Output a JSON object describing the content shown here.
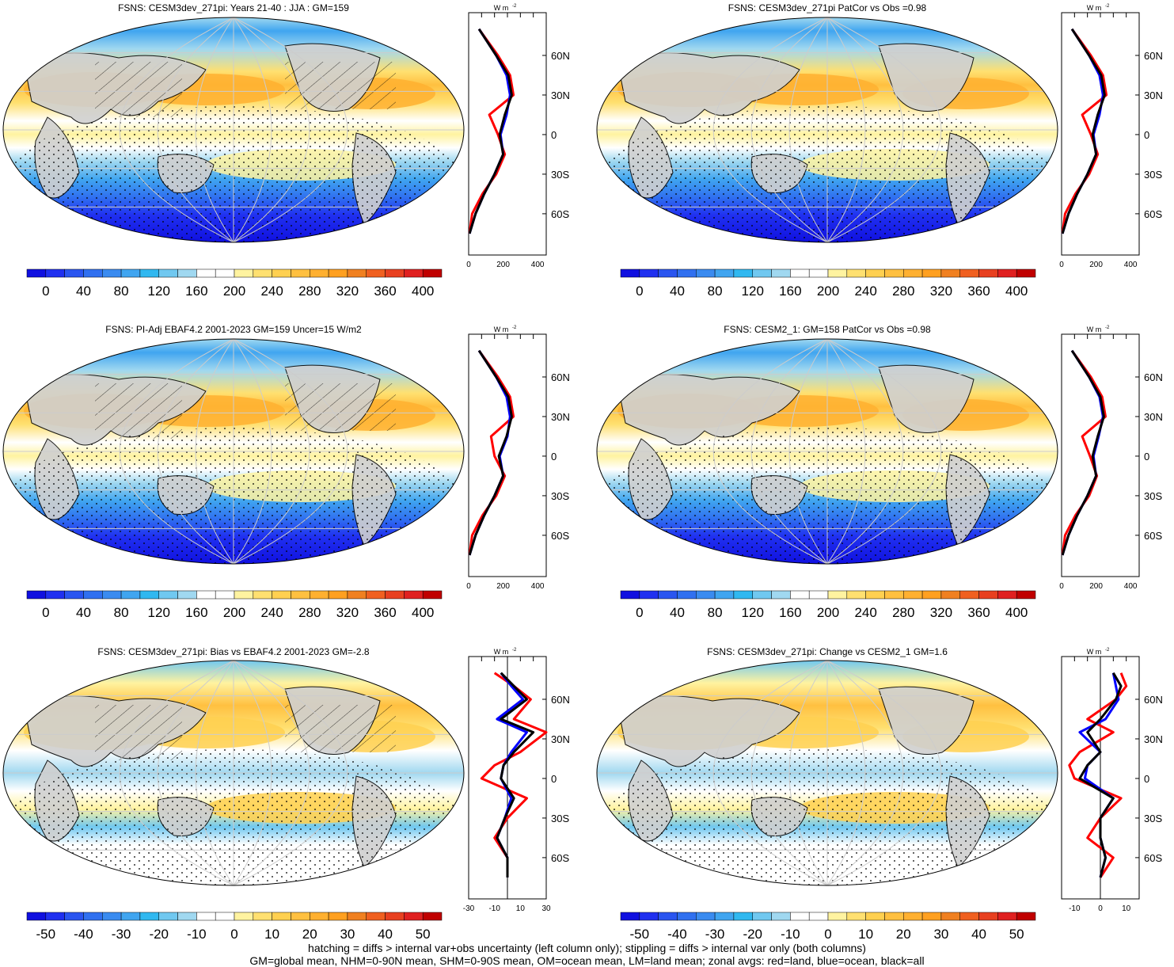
{
  "colors": {
    "land_gray": "#d0d0d0",
    "grid": "#cccccc",
    "zonal_land": "#ff0000",
    "zonal_ocean": "#0000ff",
    "zonal_all": "#000000"
  },
  "abs_palette": [
    "#1010e0",
    "#2030f0",
    "#2a55f0",
    "#3070f0",
    "#3a8bf0",
    "#40a5f0",
    "#30b8f0",
    "#70c8f0",
    "#a0d8f0",
    "#ffffff",
    "#ffffff",
    "#fff3a0",
    "#ffe070",
    "#ffd050",
    "#ffc040",
    "#ffb030",
    "#ffa020",
    "#f08020",
    "#f06020",
    "#e84020",
    "#e02020",
    "#c00000"
  ],
  "diff_palette": [
    "#1010e0",
    "#2030f0",
    "#2a55f0",
    "#3070f0",
    "#3a8bf0",
    "#40a5f0",
    "#30b8f0",
    "#70c8f0",
    "#a0d8f0",
    "#ffffff",
    "#ffffff",
    "#fff3a0",
    "#ffe070",
    "#ffd050",
    "#ffc040",
    "#ffb030",
    "#ffa020",
    "#f08020",
    "#f06020",
    "#e84020",
    "#e02020",
    "#c00000"
  ],
  "abs_ticks": [
    "0",
    "40",
    "80",
    "120",
    "160",
    "200",
    "240",
    "280",
    "320",
    "360",
    "400"
  ],
  "diff_ticks": [
    "-50",
    "-40",
    "-30",
    "-20",
    "-10",
    "0",
    "10",
    "20",
    "30",
    "40",
    "50"
  ],
  "lat_labels": [
    "60N",
    "30N",
    "0",
    "30S",
    "60S"
  ],
  "zonal_unit": "W m",
  "zonal_unit_exp": "-2",
  "panels": [
    {
      "title": "FSNS: CESM3dev_271pi: Years 21-40 : JJA : GM=159",
      "kind": "abs",
      "hatch": true,
      "zonal_ticks": [
        "0",
        "200",
        "400"
      ],
      "zonal_range": [
        0,
        450
      ],
      "zero_line": false
    },
    {
      "title": "FSNS: CESM3dev_271pi PatCor vs Obs =0.98",
      "kind": "abs",
      "hatch": false,
      "zonal_ticks": [
        "0",
        "200",
        "400"
      ],
      "zonal_range": [
        0,
        450
      ],
      "zero_line": false
    },
    {
      "title": "FSNS: PI-Adj EBAF4.2 2001-2023 GM=159 Uncer=15 W/m2",
      "kind": "abs",
      "hatch": true,
      "zonal_ticks": [
        "0",
        "200",
        "400"
      ],
      "zonal_range": [
        0,
        450
      ],
      "zero_line": false
    },
    {
      "title": "FSNS: CESM2_1: GM=158 PatCor vs Obs =0.98",
      "kind": "abs",
      "hatch": false,
      "zonal_ticks": [
        "0",
        "200",
        "400"
      ],
      "zonal_range": [
        0,
        450
      ],
      "zero_line": false
    },
    {
      "title": "FSNS: CESM3dev_271pi: Bias vs EBAF4.2 2001-2023 GM=-2.8",
      "kind": "diff",
      "hatch": true,
      "zonal_ticks": [
        "-30",
        "-10",
        "10",
        "30"
      ],
      "zonal_range": [
        -30,
        30
      ],
      "zero_line": true
    },
    {
      "title": "FSNS: CESM3dev_271pi: Change vs CESM2_1 GM=1.6",
      "kind": "diff",
      "hatch": false,
      "zonal_ticks": [
        "-10",
        "0",
        "10"
      ],
      "zonal_range": [
        -15,
        15
      ],
      "zero_line": true
    }
  ],
  "footer": {
    "line1": "hatching = diffs > internal var+obs uncertainty (left column only); stippling = diffs > internal var only (both columns)",
    "line2": "GM=global mean, NHM=0-90N mean, SHM=0-90S mean, OM=ocean mean, LM=land mean; zonal avgs: red=land, blue=ocean, black=all"
  },
  "chart_data": [
    {
      "type": "heatmap",
      "title": "FSNS: CESM3dev_271pi: Years 21-40 : JJA : GM=159",
      "colorbar_ticks": [
        0,
        40,
        80,
        120,
        160,
        200,
        240,
        280,
        320,
        360,
        400
      ],
      "zonal_mean": {
        "lat": [
          80,
          60,
          45,
          30,
          15,
          0,
          -15,
          -30,
          -45,
          -60,
          -75
        ],
        "all": [
          60,
          160,
          230,
          250,
          210,
          180,
          200,
          150,
          90,
          40,
          5
        ],
        "land": [
          60,
          170,
          240,
          260,
          120,
          170,
          210,
          160,
          80,
          20,
          5
        ],
        "ocean": [
          60,
          160,
          220,
          240,
          220,
          185,
          200,
          150,
          90,
          40,
          5
        ]
      }
    },
    {
      "type": "heatmap",
      "title": "FSNS: CESM3dev_271pi PatCor vs Obs =0.98",
      "colorbar_ticks": [
        0,
        40,
        80,
        120,
        160,
        200,
        240,
        280,
        320,
        360,
        400
      ],
      "zonal_mean": {
        "lat": [
          80,
          60,
          45,
          30,
          15,
          0,
          -15,
          -30,
          -45,
          -60,
          -75
        ],
        "all": [
          60,
          160,
          230,
          250,
          210,
          180,
          200,
          150,
          90,
          40,
          5
        ],
        "land": [
          60,
          170,
          240,
          260,
          120,
          170,
          210,
          160,
          80,
          20,
          5
        ],
        "ocean": [
          60,
          160,
          220,
          240,
          220,
          185,
          200,
          150,
          90,
          40,
          5
        ]
      }
    },
    {
      "type": "heatmap",
      "title": "FSNS: PI-Adj EBAF4.2 2001-2023 GM=159 Uncer=15 W/m2",
      "colorbar_ticks": [
        0,
        40,
        80,
        120,
        160,
        200,
        240,
        280,
        320,
        360,
        400
      ],
      "zonal_mean": {
        "lat": [
          80,
          60,
          45,
          30,
          15,
          0,
          -15,
          -30,
          -45,
          -60,
          -75
        ],
        "all": [
          60,
          160,
          230,
          250,
          220,
          175,
          200,
          150,
          90,
          40,
          5
        ],
        "land": [
          60,
          170,
          240,
          260,
          130,
          150,
          210,
          160,
          80,
          20,
          5
        ],
        "ocean": [
          60,
          160,
          220,
          240,
          225,
          180,
          200,
          150,
          90,
          40,
          5
        ]
      }
    },
    {
      "type": "heatmap",
      "title": "FSNS: CESM2_1: GM=158 PatCor vs Obs =0.98",
      "colorbar_ticks": [
        0,
        40,
        80,
        120,
        160,
        200,
        240,
        280,
        320,
        360,
        400
      ],
      "zonal_mean": {
        "lat": [
          80,
          60,
          45,
          30,
          15,
          0,
          -15,
          -30,
          -45,
          -60,
          -75
        ],
        "all": [
          60,
          160,
          225,
          245,
          210,
          180,
          200,
          150,
          90,
          40,
          5
        ],
        "land": [
          60,
          170,
          235,
          255,
          120,
          165,
          205,
          160,
          80,
          20,
          5
        ],
        "ocean": [
          60,
          160,
          220,
          240,
          215,
          185,
          200,
          150,
          90,
          40,
          5
        ]
      }
    },
    {
      "type": "heatmap",
      "title": "FSNS: CESM3dev_271pi: Bias vs EBAF4.2 2001-2023 GM=-2.8",
      "colorbar_ticks": [
        -50,
        -40,
        -30,
        -20,
        -10,
        0,
        10,
        20,
        30,
        40,
        50
      ],
      "zonal_mean": {
        "lat": [
          80,
          70,
          60,
          45,
          35,
          20,
          10,
          0,
          -15,
          -30,
          -45,
          -60,
          -75
        ],
        "all": [
          -5,
          5,
          15,
          -5,
          20,
          5,
          -3,
          -5,
          5,
          -2,
          -8,
          0,
          0
        ],
        "land": [
          -10,
          5,
          18,
          5,
          30,
          10,
          -10,
          -20,
          15,
          0,
          -10,
          0,
          0
        ],
        "ocean": [
          -5,
          3,
          12,
          -8,
          15,
          3,
          -3,
          -5,
          3,
          -2,
          -8,
          0,
          0
        ]
      }
    },
    {
      "type": "heatmap",
      "title": "FSNS: CESM3dev_271pi: Change vs CESM2_1 GM=1.6",
      "colorbar_ticks": [
        -50,
        -40,
        -30,
        -20,
        -10,
        0,
        10,
        20,
        30,
        40,
        50
      ],
      "zonal_mean": {
        "lat": [
          80,
          70,
          60,
          45,
          35,
          20,
          10,
          0,
          -15,
          -30,
          -45,
          -60,
          -75
        ],
        "all": [
          5,
          8,
          6,
          0,
          -5,
          0,
          -5,
          -8,
          5,
          0,
          0,
          2,
          0
        ],
        "land": [
          8,
          10,
          6,
          -5,
          5,
          -8,
          -12,
          -10,
          8,
          0,
          -5,
          5,
          0
        ],
        "ocean": [
          5,
          6,
          7,
          2,
          -8,
          0,
          -5,
          -6,
          5,
          0,
          0,
          2,
          0
        ]
      }
    }
  ]
}
